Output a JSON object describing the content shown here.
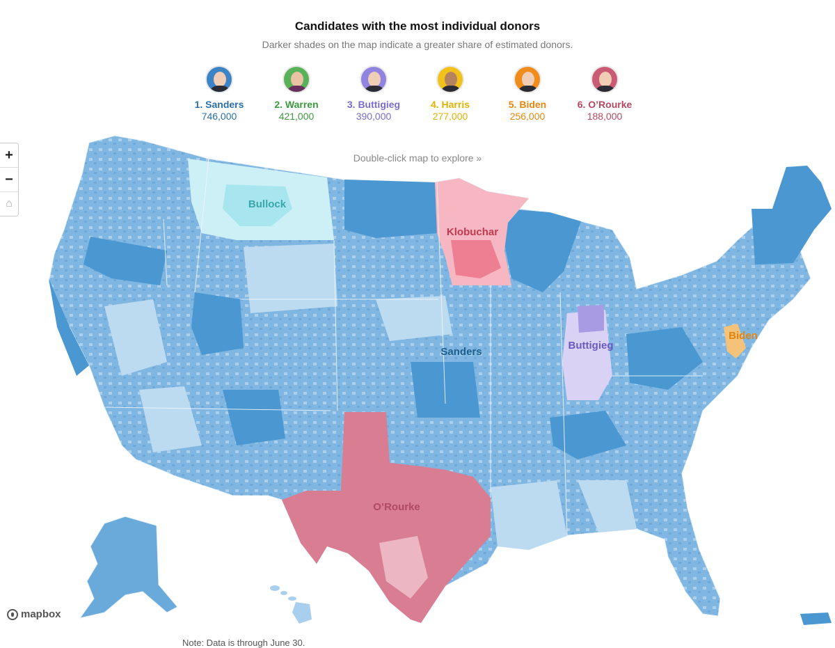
{
  "header": {
    "title": "Candidates with the most individual donors",
    "subtitle": "Darker shades on the map indicate a greater share of estimated donors."
  },
  "candidates": [
    {
      "label": "1. Sanders",
      "count": "746,000",
      "color": "#2a6fa8",
      "ring": "#3d84c6"
    },
    {
      "label": "2. Warren",
      "count": "421,000",
      "color": "#3c9a3c",
      "ring": "#59b25a"
    },
    {
      "label": "3. Buttigieg",
      "count": "390,000",
      "color": "#7b6ccf",
      "ring": "#9183e0"
    },
    {
      "label": "4. Harris",
      "count": "277,000",
      "color": "#e0b300",
      "ring": "#f2c21b"
    },
    {
      "label": "5. Biden",
      "count": "256,000",
      "color": "#e8850d",
      "ring": "#f08c1c"
    },
    {
      "label": "6. O’Rourke",
      "count": "188,000",
      "color": "#b5475f",
      "ring": "#c95c74"
    }
  ],
  "controls": {
    "zoom_in": "+",
    "zoom_out": "−",
    "home": "⌂"
  },
  "hint": "Double-click map to explore »",
  "map_labels": {
    "bullock": {
      "text": "Bullock",
      "color": "#3aa6a8"
    },
    "klobuchar": {
      "text": "Klobuchar",
      "color": "#c23a4e"
    },
    "sanders": {
      "text": "Sanders",
      "color": "#1d5f8e"
    },
    "buttigieg": {
      "text": "Buttigieg",
      "color": "#6b59c2"
    },
    "biden": {
      "text": "Biden",
      "color": "#e08411"
    },
    "orourke": {
      "text": "O’Rourke",
      "color": "#b04a60"
    }
  },
  "region_colors": {
    "sanders_dark": "#4a97d1",
    "sanders_light": "#b9d9f0",
    "bullock": "#a7e6ef",
    "klobuchar": "#f4a2b2",
    "buttigieg": "#a99be3",
    "orourke": "#d97d92",
    "biden": "#f5c27a"
  },
  "attribution": "mapbox",
  "note": "Note: Data is through June 30."
}
